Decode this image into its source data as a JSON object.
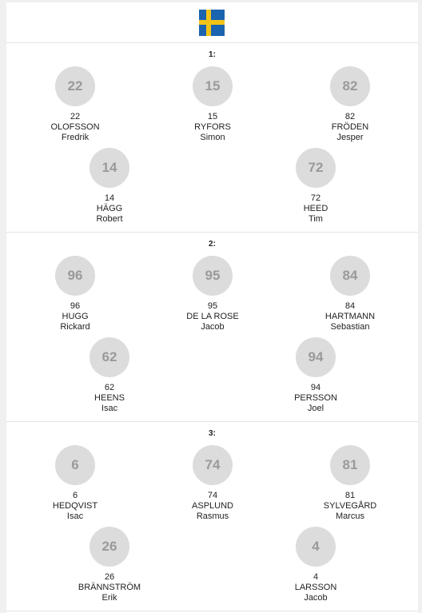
{
  "flag": {
    "icon": "sweden-flag-icon",
    "colors": {
      "blue": "#1a64b0",
      "yellow": "#f2c418"
    }
  },
  "lines": [
    {
      "title": "1:",
      "players": [
        {
          "number": "22",
          "last": "OLOFSSON",
          "first": "Fredrik"
        },
        {
          "number": "15",
          "last": "RYFORS",
          "first": "Simon"
        },
        {
          "number": "82",
          "last": "FRÖDEN",
          "first": "Jesper"
        },
        {
          "number": "14",
          "last": "HÄGG",
          "first": "Robert"
        },
        {
          "number": "72",
          "last": "HEED",
          "first": "Tim"
        }
      ]
    },
    {
      "title": "2:",
      "players": [
        {
          "number": "96",
          "last": "HUGG",
          "first": "Rickard"
        },
        {
          "number": "95",
          "last": "DE LA ROSE",
          "first": "Jacob"
        },
        {
          "number": "84",
          "last": "HARTMANN",
          "first": "Sebastian"
        },
        {
          "number": "62",
          "last": "HEENS",
          "first": "Isac"
        },
        {
          "number": "94",
          "last": "PERSSON",
          "first": "Joel"
        }
      ]
    },
    {
      "title": "3:",
      "players": [
        {
          "number": "6",
          "last": "HEDQVIST",
          "first": "Isac"
        },
        {
          "number": "74",
          "last": "ASPLUND",
          "first": "Rasmus"
        },
        {
          "number": "81",
          "last": "SYLVEGÅRD",
          "first": "Marcus"
        },
        {
          "number": "26",
          "last": "BRÄNNSTRÖM",
          "first": "Erik"
        },
        {
          "number": "4",
          "last": "LARSSON",
          "first": "Jacob"
        }
      ]
    }
  ]
}
